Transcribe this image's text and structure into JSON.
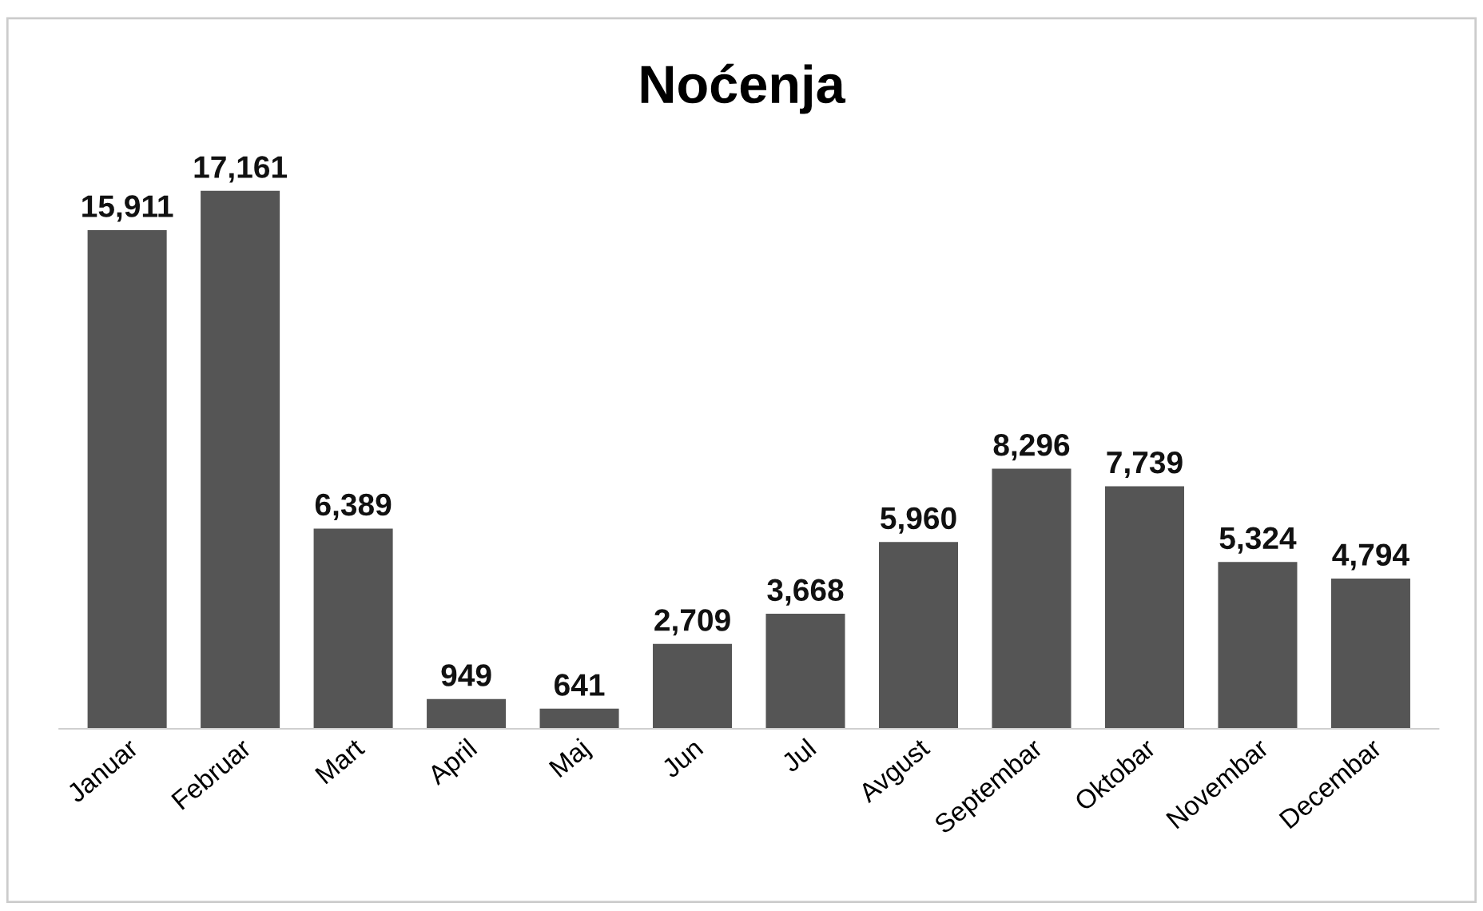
{
  "chart_data": {
    "type": "bar",
    "title": "Noćenja",
    "categories": [
      "Januar",
      "Februar",
      "Mart",
      "April",
      "Maj",
      "Jun",
      "Jul",
      "Avgust",
      "Septembar",
      "Oktobar",
      "Novembar",
      "Decembar"
    ],
    "values": [
      15911,
      17161,
      6389,
      949,
      641,
      2709,
      3668,
      5960,
      8296,
      7739,
      5324,
      4794
    ],
    "value_labels": [
      "15,911",
      "17,161",
      "6,389",
      "949",
      "641",
      "2,709",
      "3,668",
      "5,960",
      "8,296",
      "7,739",
      "5,324",
      "4,794"
    ],
    "color": "#555555",
    "grid": false,
    "legend": false
  }
}
